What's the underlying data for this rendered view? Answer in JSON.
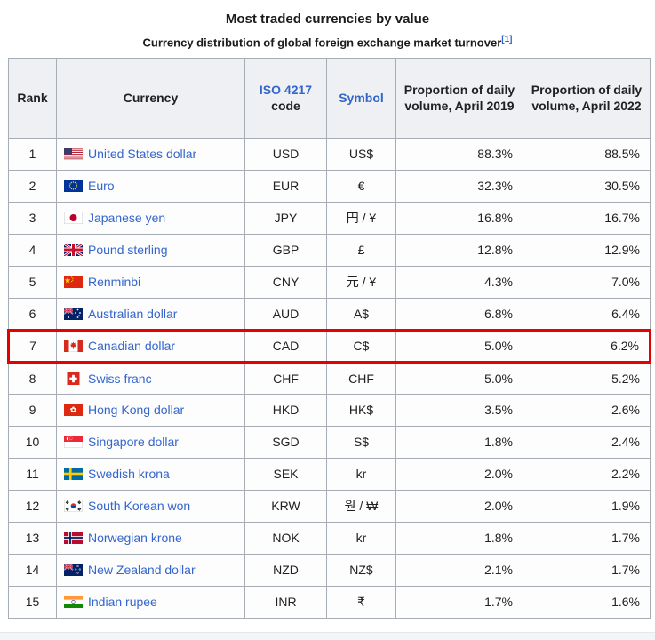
{
  "title": "Most traded currencies by value",
  "subtitle": "Currency distribution of global foreign exchange market turnover",
  "citation": "[1]",
  "colors": {
    "link": "#3366cc",
    "highlight_border": "#e60000"
  },
  "table": {
    "headers": {
      "rank": "Rank",
      "currency": "Currency",
      "iso_link": "ISO 4217",
      "iso_rest": "code",
      "symbol": "Symbol",
      "vol2019": "Proportion of daily volume, April 2019",
      "vol2022": "Proportion of daily volume, April 2022"
    },
    "rows": [
      {
        "rank": "1",
        "flag": "us",
        "currency": "United States dollar",
        "code": "USD",
        "symbol": "US$",
        "v2019": "88.3%",
        "v2022": "88.5%",
        "highlight": false
      },
      {
        "rank": "2",
        "flag": "eu",
        "currency": "Euro",
        "code": "EUR",
        "symbol": "€",
        "v2019": "32.3%",
        "v2022": "30.5%",
        "highlight": false
      },
      {
        "rank": "3",
        "flag": "jp",
        "currency": "Japanese yen",
        "code": "JPY",
        "symbol": "円 / ¥",
        "v2019": "16.8%",
        "v2022": "16.7%",
        "highlight": false
      },
      {
        "rank": "4",
        "flag": "gb",
        "currency": "Pound sterling",
        "code": "GBP",
        "symbol": "£",
        "v2019": "12.8%",
        "v2022": "12.9%",
        "highlight": false
      },
      {
        "rank": "5",
        "flag": "cn",
        "currency": "Renminbi",
        "code": "CNY",
        "symbol": "元 / ¥",
        "v2019": "4.3%",
        "v2022": "7.0%",
        "highlight": false
      },
      {
        "rank": "6",
        "flag": "au",
        "currency": "Australian dollar",
        "code": "AUD",
        "symbol": "A$",
        "v2019": "6.8%",
        "v2022": "6.4%",
        "highlight": false
      },
      {
        "rank": "7",
        "flag": "ca",
        "currency": "Canadian dollar",
        "code": "CAD",
        "symbol": "C$",
        "v2019": "5.0%",
        "v2022": "6.2%",
        "highlight": true
      },
      {
        "rank": "8",
        "flag": "ch",
        "currency": "Swiss franc",
        "code": "CHF",
        "symbol": "CHF",
        "v2019": "5.0%",
        "v2022": "5.2%",
        "highlight": false
      },
      {
        "rank": "9",
        "flag": "hk",
        "currency": "Hong Kong dollar",
        "code": "HKD",
        "symbol": "HK$",
        "v2019": "3.5%",
        "v2022": "2.6%",
        "highlight": false
      },
      {
        "rank": "10",
        "flag": "sg",
        "currency": "Singapore dollar",
        "code": "SGD",
        "symbol": "S$",
        "v2019": "1.8%",
        "v2022": "2.4%",
        "highlight": false
      },
      {
        "rank": "11",
        "flag": "se",
        "currency": "Swedish krona",
        "code": "SEK",
        "symbol": "kr",
        "v2019": "2.0%",
        "v2022": "2.2%",
        "highlight": false
      },
      {
        "rank": "12",
        "flag": "kr",
        "currency": "South Korean won",
        "code": "KRW",
        "symbol": "원 / ₩",
        "v2019": "2.0%",
        "v2022": "1.9%",
        "highlight": false
      },
      {
        "rank": "13",
        "flag": "no",
        "currency": "Norwegian krone",
        "code": "NOK",
        "symbol": "kr",
        "v2019": "1.8%",
        "v2022": "1.7%",
        "highlight": false
      },
      {
        "rank": "14",
        "flag": "nz",
        "currency": "New Zealand dollar",
        "code": "NZD",
        "symbol": "NZ$",
        "v2019": "2.1%",
        "v2022": "1.7%",
        "highlight": false
      },
      {
        "rank": "15",
        "flag": "in",
        "currency": "Indian rupee",
        "code": "INR",
        "symbol": "₹",
        "v2019": "1.7%",
        "v2022": "1.6%",
        "highlight": false
      }
    ]
  }
}
